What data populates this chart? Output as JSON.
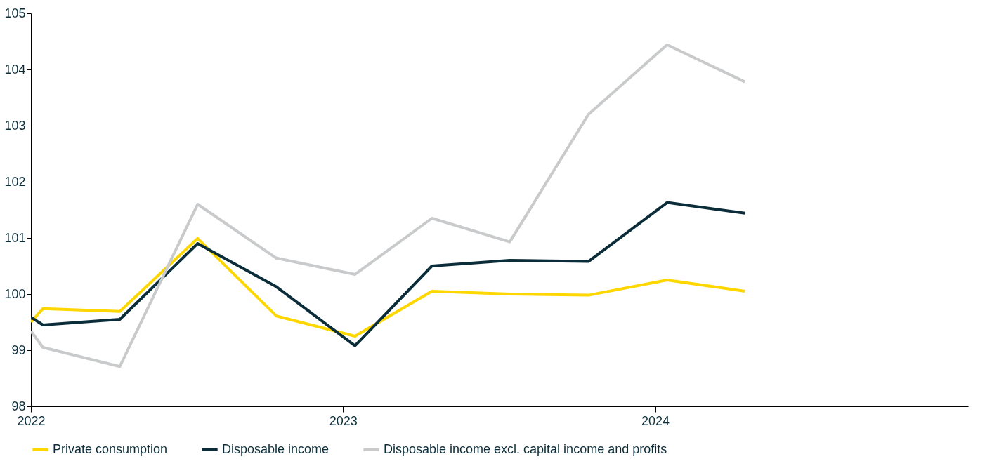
{
  "chart_data": {
    "type": "line",
    "x": [
      "2022-01-01",
      "2022-01-15",
      "2022-04-15",
      "2022-07-15",
      "2022-10-15",
      "2023-01-15",
      "2023-04-15",
      "2023-07-15",
      "2023-10-15",
      "2024-01-15",
      "2024-04-15"
    ],
    "series": [
      {
        "name": "Private consumption",
        "color": "#ffd700",
        "values": [
          99.5,
          99.74,
          99.69,
          100.99,
          99.61,
          99.25,
          100.05,
          100.0,
          99.98,
          100.25,
          100.05
        ]
      },
      {
        "name": "Disposable income",
        "color": "#0b2d39",
        "values": [
          99.59,
          99.45,
          99.55,
          100.9,
          100.13,
          99.08,
          100.5,
          100.6,
          100.58,
          101.63,
          101.44
        ]
      },
      {
        "name": "Disposable income excl. capital income and profits",
        "color": "#c8cacb",
        "values": [
          99.34,
          99.05,
          98.71,
          101.6,
          100.64,
          100.35,
          101.35,
          100.93,
          103.2,
          104.44,
          103.78
        ]
      }
    ],
    "xlim": [
      "2022-01-01",
      "2025-01-01"
    ],
    "xticks": [
      "2022",
      "2023",
      "2024"
    ],
    "ylim": [
      98,
      105
    ],
    "yticks": [
      98,
      99,
      100,
      101,
      102,
      103,
      104,
      105
    ],
    "grid": false,
    "legend": "bottom",
    "marker": "none",
    "line_style": "solid"
  }
}
